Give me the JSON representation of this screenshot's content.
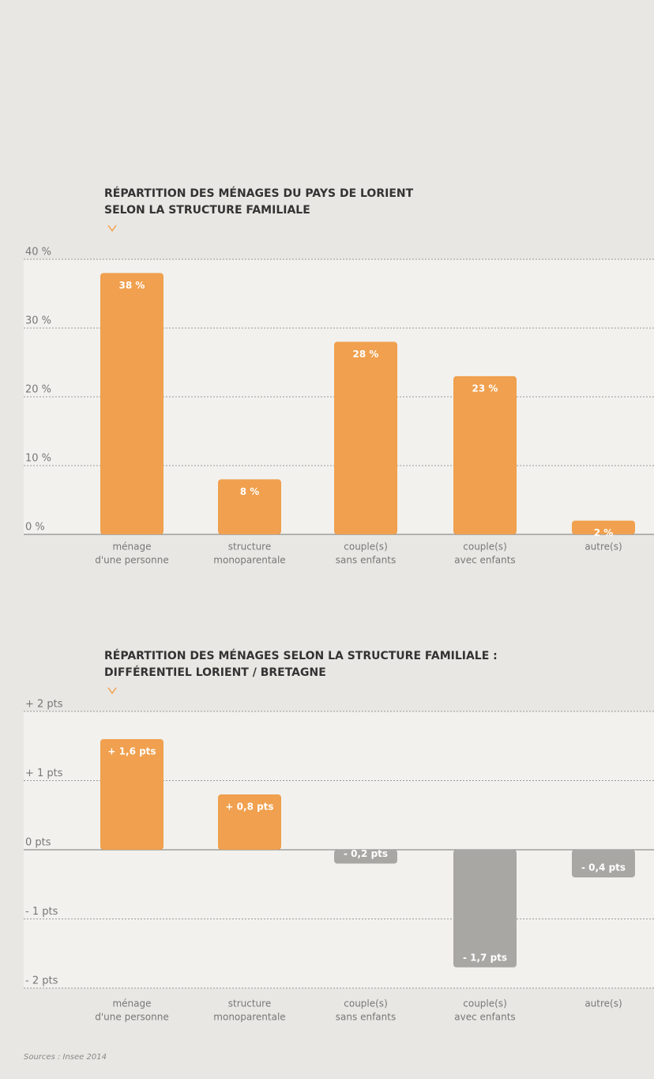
{
  "chart_data": [
    {
      "type": "bar",
      "title": [
        "RÉPARTITION DES MÉNAGES DU PAYS DE LORIENT",
        "SELON LA STRUCTURE FAMILIALE"
      ],
      "categories": [
        [
          "ménage",
          "d'une personne"
        ],
        [
          "structure",
          "monoparentale"
        ],
        [
          "couple(s)",
          "sans enfants"
        ],
        [
          "couple(s)",
          "avec enfants"
        ],
        [
          "autre(s)"
        ]
      ],
      "values": [
        38,
        8,
        28,
        23,
        2
      ],
      "value_labels": [
        "38 %",
        "8 %",
        "28 %",
        "23 %",
        "2 %"
      ],
      "color": "#f0a04e",
      "ylim": [
        0,
        40
      ],
      "yticks": [
        {
          "value": 0,
          "label": "0 %"
        },
        {
          "value": 10,
          "label": "10 %"
        },
        {
          "value": 20,
          "label": "20 %"
        },
        {
          "value": 30,
          "label": "30 %"
        },
        {
          "value": 40,
          "label": "40 %"
        }
      ],
      "grid": true
    },
    {
      "type": "bar",
      "title": [
        "RÉPARTITION DES MÉNAGES SELON LA STRUCTURE FAMILIALE :",
        "DIFFÉRENTIEL LORIENT / BRETAGNE"
      ],
      "categories": [
        [
          "ménage",
          "d'une personne"
        ],
        [
          "structure",
          "monoparentale"
        ],
        [
          "couple(s)",
          "sans enfants"
        ],
        [
          "couple(s)",
          "avec enfants"
        ],
        [
          "autre(s)"
        ]
      ],
      "values": [
        1.6,
        0.8,
        -0.2,
        -1.7,
        -0.4
      ],
      "value_labels": [
        "+ 1,6 pts",
        "+ 0,8 pts",
        "- 0,2 pts",
        "- 1,7 pts",
        "- 0,4 pts"
      ],
      "color": "#f0a04e",
      "negative_color": "#a9a7a3",
      "ylim": [
        -2,
        2
      ],
      "yticks": [
        {
          "value": -2,
          "label": "- 2 pts"
        },
        {
          "value": -1,
          "label": "- 1 pts"
        },
        {
          "value": 0,
          "label": "0 pts"
        },
        {
          "value": 1,
          "label": "+ 1 pts"
        },
        {
          "value": 2,
          "label": "+ 2 pts"
        }
      ],
      "grid": true
    }
  ],
  "source": "Sources : Insee 2014"
}
